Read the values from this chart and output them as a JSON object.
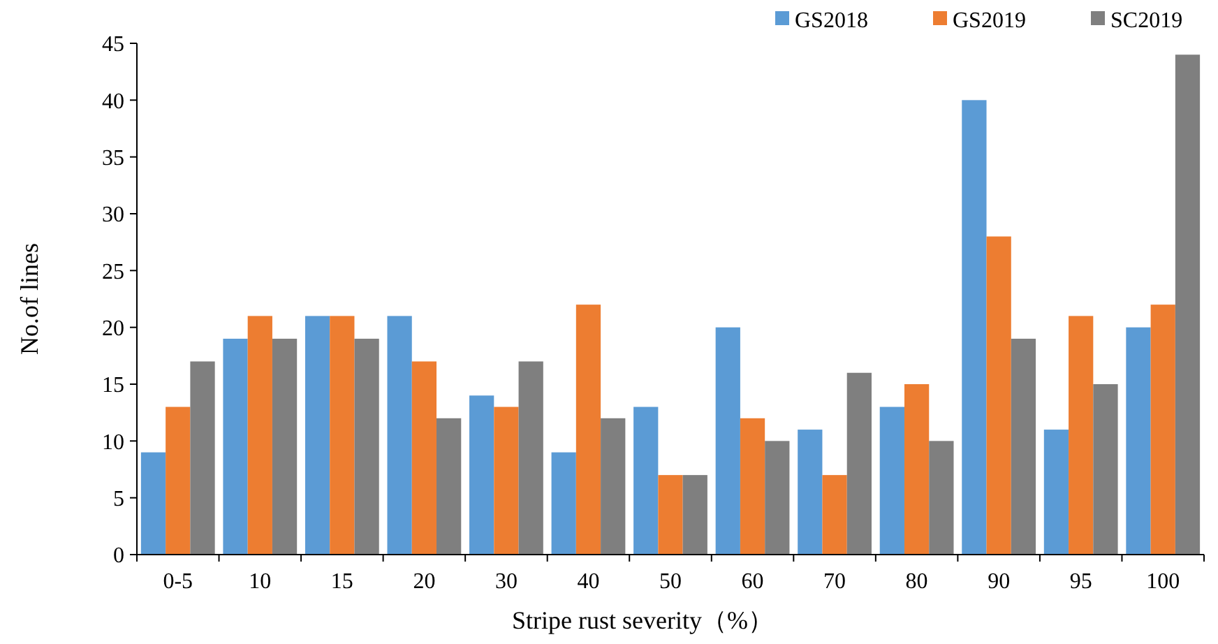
{
  "chart_data": {
    "type": "bar",
    "xlabel": "Stripe rust severity（%）",
    "ylabel": "No.of lines",
    "categories": [
      "0-5",
      "10",
      "15",
      "20",
      "30",
      "40",
      "50",
      "60",
      "70",
      "80",
      "90",
      "95",
      "100"
    ],
    "series": [
      {
        "name": "GS2018",
        "color": "#5b9bd5",
        "values": [
          9,
          19,
          21,
          21,
          14,
          9,
          13,
          20,
          11,
          13,
          40,
          11,
          20
        ]
      },
      {
        "name": "GS2019",
        "color": "#ed7d31",
        "values": [
          13,
          21,
          21,
          17,
          13,
          22,
          7,
          12,
          7,
          15,
          28,
          21,
          22
        ]
      },
      {
        "name": "SC2019",
        "color": "#7f7f7f",
        "values": [
          17,
          19,
          19,
          12,
          17,
          12,
          7,
          10,
          16,
          10,
          19,
          15,
          44
        ]
      }
    ],
    "ylim": [
      0,
      45
    ],
    "yticks": [
      0,
      5,
      10,
      15,
      20,
      25,
      30,
      35,
      40,
      45
    ],
    "grid": false,
    "legend": "top right"
  }
}
